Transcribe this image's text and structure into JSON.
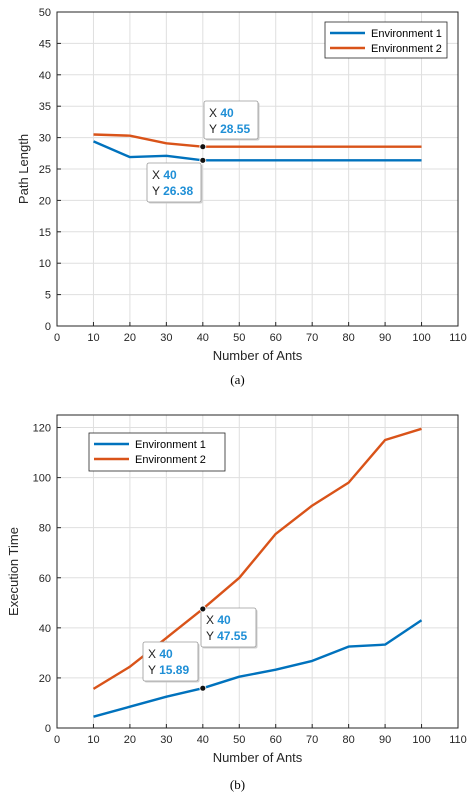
{
  "chart_data": [
    {
      "type": "line",
      "caption": "(a)",
      "xlabel": "Number of Ants",
      "ylabel": "Path Length",
      "xlim": [
        0,
        110
      ],
      "ylim": [
        0,
        50
      ],
      "xticks": [
        0,
        10,
        20,
        30,
        40,
        50,
        60,
        70,
        80,
        90,
        100,
        110
      ],
      "yticks": [
        0,
        5,
        10,
        15,
        20,
        25,
        30,
        35,
        40,
        45,
        50
      ],
      "grid": true,
      "legend": "top-right",
      "x": [
        10,
        20,
        30,
        40,
        50,
        60,
        70,
        80,
        90,
        100
      ],
      "series": [
        {
          "name": "Environment 1",
          "color": "#0072bd",
          "values": [
            29.4,
            26.9,
            27.1,
            26.38,
            26.38,
            26.38,
            26.38,
            26.38,
            26.38,
            26.38
          ]
        },
        {
          "name": "Environment 2",
          "color": "#d95319",
          "values": [
            30.5,
            30.3,
            29.1,
            28.55,
            28.55,
            28.55,
            28.55,
            28.55,
            28.55,
            28.55
          ]
        }
      ],
      "annotations": [
        {
          "x": 40,
          "y": 28.55,
          "xtext": "40",
          "ytext": "28.55"
        },
        {
          "x": 40,
          "y": 26.38,
          "xtext": "40",
          "ytext": "26.38"
        }
      ]
    },
    {
      "type": "line",
      "caption": "(b)",
      "xlabel": "Number of Ants",
      "ylabel": "Execution Time",
      "xlim": [
        0,
        110
      ],
      "ylim": [
        0,
        125
      ],
      "xticks": [
        0,
        10,
        20,
        30,
        40,
        50,
        60,
        70,
        80,
        90,
        100,
        110
      ],
      "yticks": [
        0,
        20,
        40,
        60,
        80,
        100,
        120
      ],
      "grid": true,
      "legend": "top-left",
      "x": [
        10,
        20,
        30,
        40,
        50,
        60,
        70,
        80,
        90,
        100
      ],
      "series": [
        {
          "name": "Environment 1",
          "color": "#0072bd",
          "values": [
            4.5,
            8.5,
            12.5,
            15.89,
            20.5,
            23.3,
            26.8,
            32.5,
            33.3,
            43.0
          ]
        },
        {
          "name": "Environment 2",
          "color": "#d95319",
          "values": [
            15.6,
            24.5,
            36.0,
            47.55,
            60.0,
            77.5,
            88.8,
            98.0,
            115.0,
            119.5
          ]
        }
      ],
      "annotations": [
        {
          "x": 40,
          "y": 47.55,
          "xtext": "40",
          "ytext": "47.55"
        },
        {
          "x": 40,
          "y": 15.89,
          "xtext": "40",
          "ytext": "15.89"
        }
      ]
    }
  ],
  "tooltip_labels": {
    "x": "X",
    "y": "Y"
  }
}
